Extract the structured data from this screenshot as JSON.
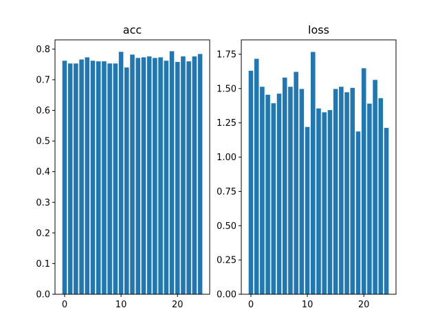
{
  "chart_data": [
    {
      "type": "bar",
      "title": "acc",
      "xlabel": "",
      "ylabel": "",
      "x": [
        0,
        1,
        2,
        3,
        4,
        5,
        6,
        7,
        8,
        9,
        10,
        11,
        12,
        13,
        14,
        15,
        16,
        17,
        18,
        19,
        20,
        21,
        22,
        23,
        24
      ],
      "values": [
        0.762,
        0.753,
        0.753,
        0.766,
        0.773,
        0.762,
        0.76,
        0.76,
        0.753,
        0.753,
        0.791,
        0.74,
        0.782,
        0.771,
        0.773,
        0.776,
        0.771,
        0.773,
        0.762,
        0.793,
        0.758,
        0.776,
        0.76,
        0.776,
        0.784
      ],
      "xlim": [
        -1.7,
        25.7
      ],
      "ylim": [
        0,
        0.83
      ],
      "xticks": [
        0,
        10,
        20
      ],
      "yticks": [
        0.0,
        0.1,
        0.2,
        0.3,
        0.4,
        0.5,
        0.6,
        0.7,
        0.8
      ],
      "ytick_labels": [
        "0.0",
        "0.1",
        "0.2",
        "0.3",
        "0.4",
        "0.5",
        "0.6",
        "0.7",
        "0.8"
      ],
      "color": "#1f77b4",
      "grid": false
    },
    {
      "type": "bar",
      "title": "loss",
      "xlabel": "",
      "ylabel": "",
      "x": [
        0,
        1,
        2,
        3,
        4,
        5,
        6,
        7,
        8,
        9,
        10,
        11,
        12,
        13,
        14,
        15,
        16,
        17,
        18,
        19,
        20,
        21,
        22,
        23,
        24
      ],
      "values": [
        1.63,
        1.717,
        1.513,
        1.455,
        1.393,
        1.463,
        1.58,
        1.513,
        1.622,
        1.497,
        1.22,
        1.767,
        1.355,
        1.327,
        1.343,
        1.497,
        1.513,
        1.473,
        1.505,
        1.187,
        1.648,
        1.39,
        1.563,
        1.43,
        1.213
      ],
      "xlim": [
        -1.7,
        25.7
      ],
      "ylim": [
        0,
        1.855
      ],
      "xticks": [
        0,
        10,
        20
      ],
      "yticks": [
        0.0,
        0.25,
        0.5,
        0.75,
        1.0,
        1.25,
        1.5,
        1.75
      ],
      "ytick_labels": [
        "0.00",
        "0.25",
        "0.50",
        "0.75",
        "1.00",
        "1.25",
        "1.50",
        "1.75"
      ],
      "color": "#1f77b4",
      "grid": false
    }
  ]
}
